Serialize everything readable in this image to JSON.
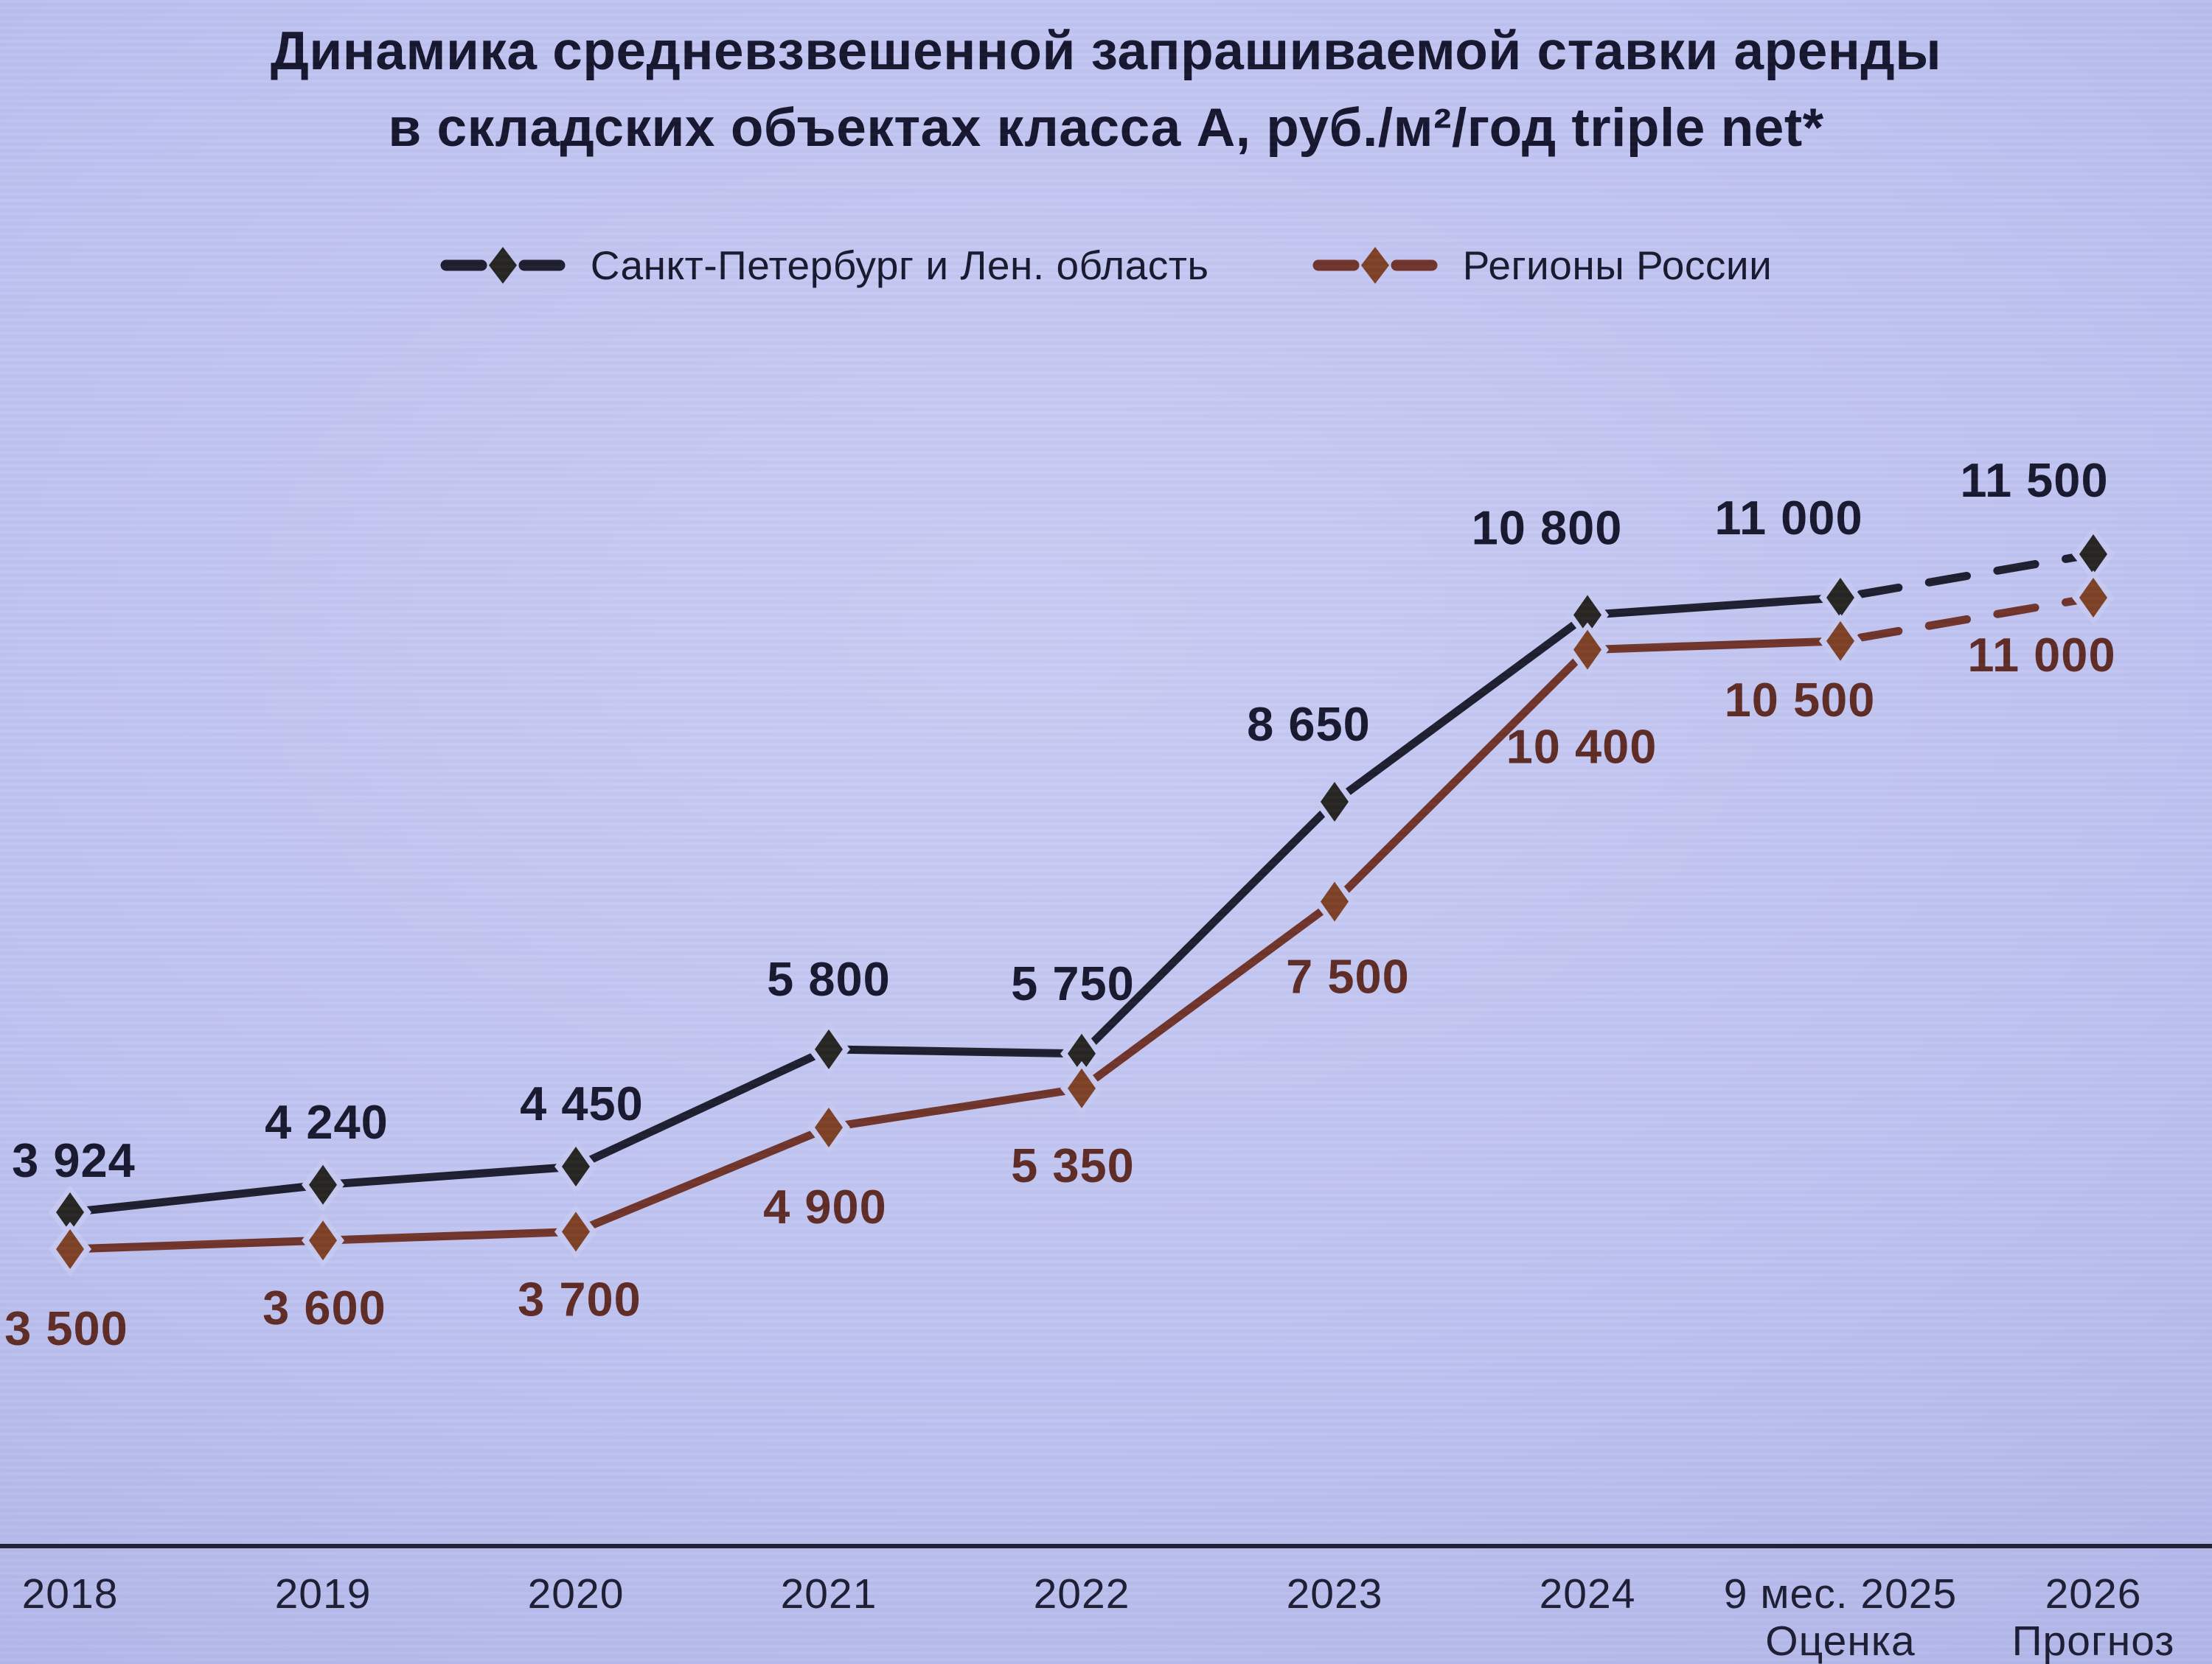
{
  "title": {
    "line1": "Динамика средневзвешенной запрашиваемой ставки аренды",
    "line2": "в складских объектах класса А, руб./м²/год triple net*"
  },
  "colors": {
    "background": "#bcc0ec",
    "text_dark": "#15152b",
    "axis": "#1c1c30",
    "marker_halo": "#c6c9f1",
    "spb_line": "#1b1b2c",
    "spb_marker": "#23221f",
    "regions_line": "#6e3126",
    "regions_marker": "#7c3e22",
    "regions_label": "#5d2921"
  },
  "chart_data": {
    "type": "line",
    "title": "Динамика средневзвешенной запрашиваемой ставки аренды в складских объектах класса А, руб./м²/год triple net*",
    "categories": [
      "2018",
      "2019",
      "2020",
      "2021",
      "2022",
      "2023",
      "2024",
      "9 мес. 2025",
      "2026"
    ],
    "category_sublabels": [
      "",
      "",
      "",
      "",
      "",
      "",
      "",
      "Оценка",
      "Прогноз"
    ],
    "ylim": [
      3000,
      12600
    ],
    "grid": false,
    "legend_position": "top",
    "series": [
      {
        "name": "Санкт-Петербург и Лен. область",
        "color": "#1b1b2c",
        "marker_color": "#23221f",
        "label_color": "#15152b",
        "marker": "diamond",
        "dashed_from_index": 7,
        "values": [
          3924,
          4240,
          4450,
          5800,
          5750,
          8650,
          10800,
          11000,
          11500
        ],
        "labels": [
          "3 924",
          "4 240",
          "4 450",
          "5 800",
          "5 750",
          "8 650",
          "10 800",
          "11 000",
          "11 500"
        ]
      },
      {
        "name": "Регионы России",
        "color": "#6e3126",
        "marker_color": "#7c3e22",
        "label_color": "#5d2921",
        "marker": "diamond",
        "dashed_from_index": 7,
        "values": [
          3500,
          3600,
          3700,
          4900,
          5350,
          7500,
          10400,
          10500,
          11000
        ],
        "labels": [
          "3 500",
          "3 600",
          "3 700",
          "4 900",
          "5 350",
          "7 500",
          "10 400",
          "10 500",
          "11 000"
        ]
      }
    ]
  }
}
